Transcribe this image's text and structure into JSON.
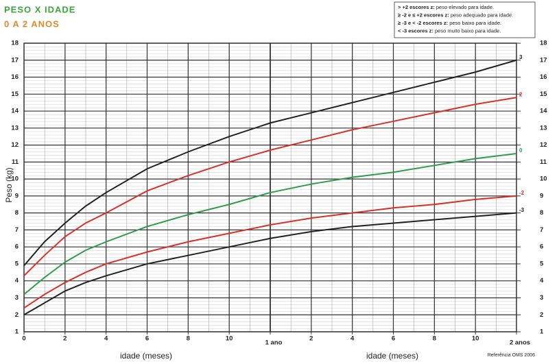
{
  "chart_data": {
    "type": "line",
    "title": "PESO X IDADE",
    "subtitle": "0 A 2 ANOS",
    "ylabel": "Peso (kg)",
    "xlabel": "idade (meses)",
    "source": "Referência OMS 2006",
    "notes": [
      {
        "term": "> +2 escores z:",
        "desc": " peso elevado para idade."
      },
      {
        "term": "≥ -2 e ≤ +2 escores z:",
        "desc": " peso adequado para idade."
      },
      {
        "term": "≥ -3 e < -2 escores z:",
        "desc": " peso baixo para idade."
      },
      {
        "term": "< -3 escores z:",
        "desc": " peso muito baixo para idade."
      }
    ],
    "x": [
      0,
      1,
      2,
      3,
      4,
      6,
      8,
      10,
      12,
      14,
      16,
      18,
      20,
      22,
      24
    ],
    "series": [
      {
        "name": "3",
        "color": "#222222",
        "values": [
          4.9,
          6.3,
          7.4,
          8.4,
          9.2,
          10.6,
          11.6,
          12.5,
          13.3,
          13.9,
          14.5,
          15.1,
          15.7,
          16.3,
          17.0
        ]
      },
      {
        "name": "2",
        "color": "#d8312b",
        "values": [
          4.3,
          5.5,
          6.6,
          7.4,
          8.0,
          9.3,
          10.2,
          11.0,
          11.7,
          12.3,
          12.9,
          13.4,
          13.9,
          14.4,
          14.8
        ]
      },
      {
        "name": "0",
        "color": "#2e9c48",
        "values": [
          3.2,
          4.2,
          5.1,
          5.8,
          6.3,
          7.2,
          7.9,
          8.5,
          9.2,
          9.7,
          10.1,
          10.4,
          10.8,
          11.2,
          11.5
        ]
      },
      {
        "name": "-2",
        "color": "#d8312b",
        "values": [
          2.4,
          3.2,
          3.9,
          4.5,
          5.0,
          5.7,
          6.3,
          6.8,
          7.3,
          7.7,
          8.0,
          8.3,
          8.5,
          8.8,
          9.0
        ]
      },
      {
        "name": "-3",
        "color": "#222222",
        "values": [
          2.0,
          2.7,
          3.4,
          3.9,
          4.3,
          5.0,
          5.5,
          6.0,
          6.5,
          6.9,
          7.2,
          7.4,
          7.6,
          7.8,
          8.0
        ]
      }
    ],
    "xlim": [
      0,
      24
    ],
    "xticks": [
      0,
      2,
      4,
      6,
      8,
      10,
      {
        "value": 12,
        "label": "1 ano"
      },
      {
        "value": 14,
        "label": "2"
      },
      {
        "value": 16,
        "label": "4"
      },
      {
        "value": 18,
        "label": "6"
      },
      {
        "value": 20,
        "label": "8"
      },
      {
        "value": 22,
        "label": "10"
      },
      {
        "value": 24,
        "label": "2 anos"
      }
    ],
    "ylim": [
      1,
      18
    ],
    "yticks": [
      1,
      2,
      3,
      4,
      5,
      6,
      7,
      8,
      9,
      10,
      11,
      12,
      13,
      14,
      15,
      16,
      17,
      18
    ],
    "grid": true
  }
}
